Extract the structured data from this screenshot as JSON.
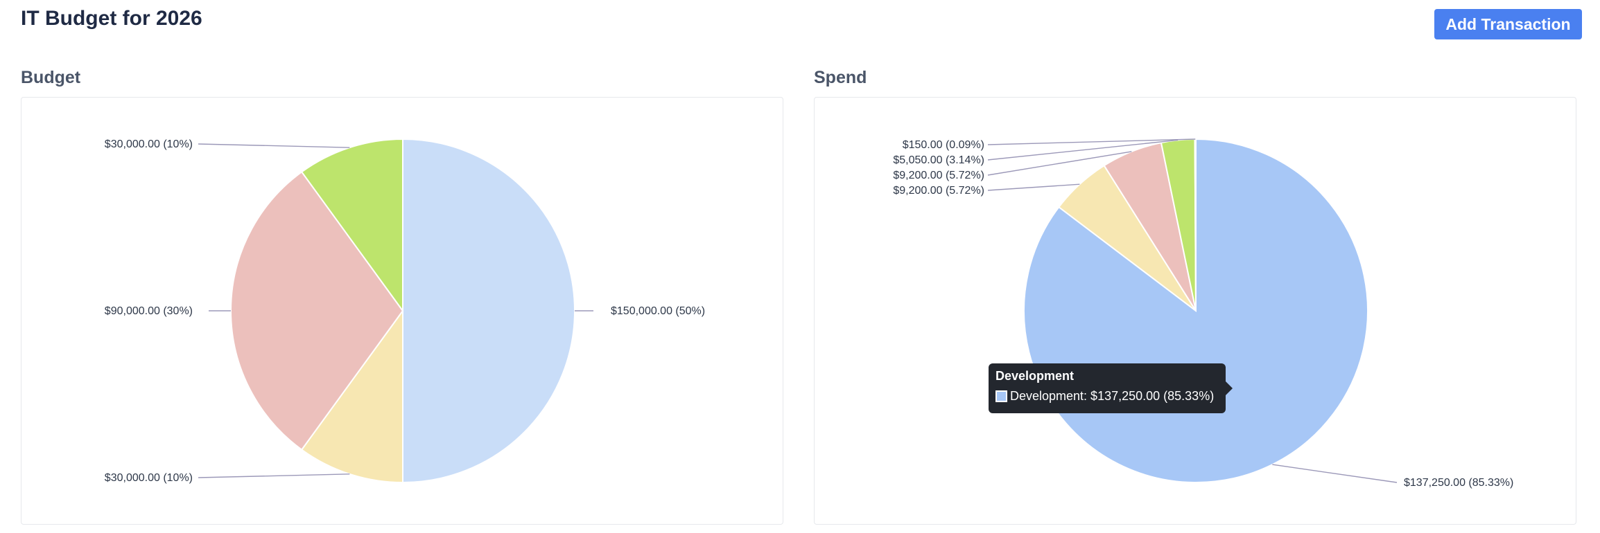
{
  "header": {
    "title": "IT Budget for 2026",
    "add_button_label": "Add Transaction"
  },
  "colors": {
    "accent": "#4a80f0",
    "blue": "#c9ddf8",
    "blue_strong": "#a7c7f6",
    "red": "#ecc0bc",
    "yellow": "#f7e7b2",
    "green": "#bde46c"
  },
  "budget": {
    "title": "Budget",
    "chart_data": {
      "type": "pie",
      "values": [
        150000,
        30000,
        90000,
        30000
      ],
      "colors": [
        "#c9ddf8",
        "#f7e7b2",
        "#ecc0bc",
        "#bde46c"
      ],
      "labels": [
        "$150,000.00 (50%)",
        "$30,000.00 (10%)",
        "$90,000.00 (30%)",
        "$30,000.00 (10%)"
      ]
    }
  },
  "spend": {
    "title": "Spend",
    "chart_data": {
      "type": "pie",
      "values": [
        137250,
        9200,
        9200,
        5050,
        150
      ],
      "colors": [
        "#a7c7f6",
        "#f7e7b2",
        "#ecc0bc",
        "#bde46c",
        "#bde46c"
      ],
      "labels": [
        "$137,250.00 (85.33%)",
        "$9,200.00 (5.72%)",
        "$9,200.00 (5.72%)",
        "$5,050.00 (3.14%)",
        "$150.00 (0.09%)"
      ]
    }
  },
  "tooltip": {
    "title": "Development",
    "text": "Development: $137,250.00 (85.33%)",
    "swatch_color": "#a7c7f6"
  }
}
